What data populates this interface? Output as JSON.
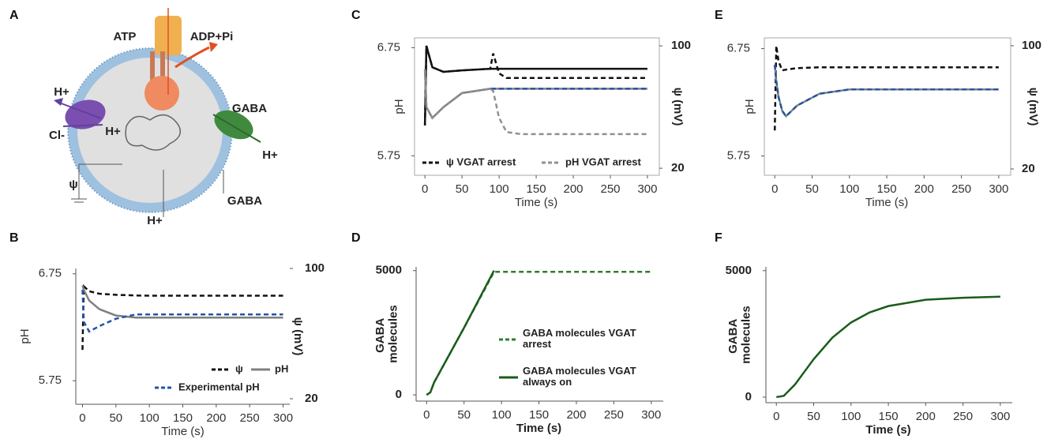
{
  "diagram": {
    "panel": "A",
    "labels": [
      "ATP",
      "ADP+Pi",
      "H+",
      "Cl-",
      "H+",
      "GABA",
      "H+",
      "ψ",
      "H+",
      "GABA"
    ]
  },
  "chart_data": [
    {
      "type": "line",
      "panel": "B",
      "x": [
        0,
        2,
        10,
        25,
        50,
        80,
        100,
        300
      ],
      "series": [
        {
          "name": "ψ",
          "color": "#111111",
          "style": "dashed",
          "axis": "y2",
          "values": [
            50,
            89,
            86,
            84.5,
            83.8,
            83.4,
            83.3,
            83.3
          ]
        },
        {
          "name": "pH",
          "color": "#808080",
          "style": "solid",
          "values": [
            6.64,
            6.6,
            6.5,
            6.42,
            6.36,
            6.34,
            6.34,
            6.34
          ]
        },
        {
          "name": "Experimental pH",
          "color": "#2255a4",
          "style": "dashed",
          "values": [
            6.6,
            6.3,
            6.21,
            6.26,
            6.33,
            6.37,
            6.37,
            6.37
          ]
        }
      ],
      "xlabel": "Time (s)",
      "ylabel": "pH",
      "y2label": "ψ (mV)",
      "xlim": [
        -10,
        310
      ],
      "xticks": [
        0,
        50,
        100,
        150,
        200,
        250,
        300
      ],
      "ylim": [
        5.53,
        6.8
      ],
      "yticks": [
        5.75,
        6.75
      ],
      "y2lim": [
        16.6,
        100
      ],
      "y2ticks": [
        20,
        100
      ]
    },
    {
      "type": "line",
      "panel": "C",
      "x": [
        0,
        2,
        10,
        25,
        50,
        88,
        92,
        100,
        110,
        130,
        300
      ],
      "series": [
        {
          "color": "#111111",
          "style": "solid",
          "axis": "y2",
          "values": [
            48,
            100,
            86,
            83,
            84,
            85,
            85,
            85,
            85,
            85,
            85
          ]
        },
        {
          "name": "ψ VGAT arrest",
          "color": "#111111",
          "style": "dashed",
          "axis": "y2",
          "values": [
            48,
            100,
            86,
            83,
            84,
            85,
            95,
            82,
            79,
            79,
            79
          ]
        },
        {
          "color": "#808080",
          "style": "solid",
          "values": [
            6.55,
            6.2,
            6.1,
            6.2,
            6.33,
            6.37,
            6.37,
            6.37,
            6.37,
            6.37,
            6.37
          ]
        },
        {
          "color": "#2255a4",
          "style": "dashed",
          "values": [
            6.55,
            6.2,
            6.1,
            6.2,
            6.33,
            6.37,
            6.37,
            6.37,
            6.37,
            6.37,
            6.37
          ]
        },
        {
          "name": "pH VGAT arrest",
          "color": "#909090",
          "style": "dashed",
          "values": [
            6.55,
            6.2,
            6.1,
            6.2,
            6.33,
            6.37,
            6.35,
            6.1,
            5.97,
            5.95,
            5.95
          ]
        }
      ],
      "xlabel": "Time (s)",
      "ylabel": "pH",
      "y2label": "ψ (mV)",
      "xlim": [
        -14,
        316
      ],
      "xticks": [
        0,
        50,
        100,
        150,
        200,
        250,
        300
      ],
      "ylim": [
        5.57,
        6.84
      ],
      "yticks": [
        5.75,
        6.75
      ],
      "y2lim": [
        15.4,
        105.2
      ],
      "y2ticks": [
        20,
        100
      ]
    },
    {
      "type": "line",
      "panel": "D",
      "x": [
        0,
        5,
        10,
        50,
        90,
        300
      ],
      "series": [
        {
          "name": "GABA molecules VGAT arrest",
          "color": "#2e7d2e",
          "style": "dashed",
          "values": [
            0,
            100,
            500,
            2700,
            4950,
            4950
          ]
        },
        {
          "name": "GABA molecules VGAT always on",
          "color": "#1a5c1a",
          "style": "solid",
          "values": [
            0,
            100,
            500,
            2700,
            5000,
            null
          ]
        }
      ],
      "xlabel": "Time (s)",
      "ylabel": "GABA molecules",
      "xlim": [
        -14,
        316
      ],
      "xticks": [
        0,
        50,
        100,
        150,
        200,
        250,
        300
      ],
      "ylim": [
        -250,
        5150
      ],
      "yticks": [
        0,
        5000
      ]
    },
    {
      "type": "line",
      "panel": "E",
      "x": [
        0,
        2,
        5,
        10,
        15,
        30,
        60,
        100,
        300
      ],
      "series": [
        {
          "color": "#111111",
          "style": "dashed",
          "axis": "y2",
          "values": [
            45,
            100,
            90,
            84,
            84.5,
            85.5,
            86,
            86,
            86
          ]
        },
        {
          "color": "#808080",
          "style": "solid",
          "values": [
            6.6,
            6.45,
            6.3,
            6.17,
            6.12,
            6.22,
            6.33,
            6.37,
            6.37
          ]
        },
        {
          "color": "#2255a4",
          "style": "dashed",
          "values": [
            6.6,
            6.45,
            6.3,
            6.17,
            6.12,
            6.22,
            6.33,
            6.37,
            6.37
          ]
        }
      ],
      "xlabel": "Time (s)",
      "ylabel": "pH",
      "y2label": "ψ (mV)",
      "xlim": [
        -14,
        316
      ],
      "xticks": [
        0,
        50,
        100,
        150,
        200,
        250,
        300
      ],
      "ylim": [
        5.57,
        6.85
      ],
      "yticks": [
        5.75,
        6.75
      ],
      "y2lim": [
        15.9,
        105.1
      ],
      "y2ticks": [
        20,
        100
      ]
    },
    {
      "type": "line",
      "panel": "F",
      "x": [
        0,
        10,
        25,
        50,
        75,
        100,
        125,
        150,
        200,
        250,
        300
      ],
      "series": [
        {
          "color": "#1a5c1a",
          "style": "solid",
          "values": [
            0,
            50,
            500,
            1500,
            2350,
            2950,
            3350,
            3600,
            3850,
            3930,
            3970
          ]
        }
      ],
      "xlabel": "Time (s)",
      "ylabel": "GABA molecules",
      "xlim": [
        -14,
        316
      ],
      "xticks": [
        0,
        50,
        100,
        150,
        200,
        250,
        300
      ],
      "ylim": [
        -220,
        5150
      ],
      "yticks": [
        0,
        5000
      ]
    }
  ]
}
